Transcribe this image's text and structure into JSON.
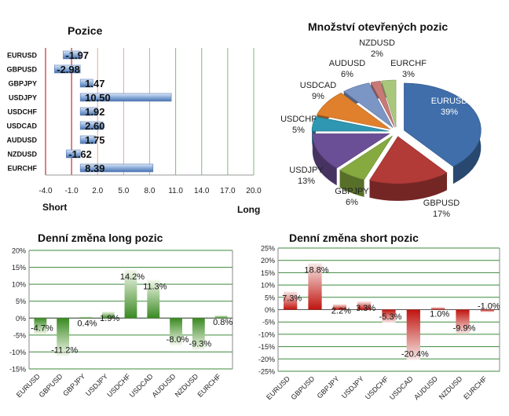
{
  "chart_data": [
    {
      "id": "pozice",
      "type": "bar",
      "orientation": "horizontal",
      "title": "Pozice",
      "categories": [
        "EURUSD",
        "GBPUSD",
        "GBPJPY",
        "USDJPY",
        "USDCHF",
        "USDCAD",
        "AUDUSD",
        "NZDUSD",
        "EURCHF"
      ],
      "values": [
        -1.97,
        -2.98,
        1.47,
        10.5,
        1.92,
        2.6,
        1.75,
        -1.62,
        8.39
      ],
      "value_labels": [
        "-1.97",
        "-2.98",
        "1.47",
        "10.50",
        "1.92",
        "2.60",
        "1.75",
        "-1.62",
        "8.39"
      ],
      "xlim": [
        -4.0,
        20.0
      ],
      "xticks": [
        "-4.0",
        "-1.0",
        "2.0",
        "5.0",
        "8.0",
        "11.0",
        "14.0",
        "17.0",
        "20.0"
      ],
      "left_label": "Short",
      "right_label": "Long",
      "colors": {
        "bar": "#4a72b0",
        "grid_red": "#c03030",
        "grid_green": "#3d9a3d"
      }
    },
    {
      "id": "mnozstvi",
      "type": "pie",
      "title": "Množství  otevřených pozic",
      "labels": [
        "EURUSD",
        "GBPUSD",
        "GBPJPY",
        "USDJPY",
        "USDCHF",
        "USDCAD",
        "AUDUSD",
        "NZDUSD",
        "EURCHF"
      ],
      "values": [
        39,
        17,
        6,
        13,
        5,
        9,
        6,
        2,
        3
      ],
      "value_labels": [
        "39%",
        "17%",
        "6%",
        "13%",
        "5%",
        "9%",
        "6%",
        "2%",
        "3%"
      ],
      "colors": [
        "#3f6eaa",
        "#b23a37",
        "#86aa3f",
        "#6b4f96",
        "#2f97b1",
        "#e0802c",
        "#7b95c4",
        "#c77a78",
        "#a9c77c"
      ]
    },
    {
      "id": "long",
      "type": "bar",
      "title": "Denní změna long pozic",
      "categories": [
        "EURUSD",
        "GBPUSD",
        "GBPJPY",
        "USDJPY",
        "USDCHF",
        "USDCAD",
        "AUDUSD",
        "NZDUSD",
        "EURCHF"
      ],
      "values": [
        -4.7,
        -11.2,
        0.4,
        1.9,
        14.2,
        11.3,
        -8.0,
        -9.3,
        0.8
      ],
      "value_labels": [
        "-4.7%",
        "-11.2%",
        "0.4%",
        "1.9%",
        "14.2%",
        "11.3%",
        "-8.0%",
        "-9.3%",
        "0.8%"
      ],
      "ylim": [
        -15,
        20
      ],
      "yticks": [
        "-15%",
        "-10%",
        "-5%",
        "0%",
        "5%",
        "10%",
        "15%",
        "20%"
      ],
      "colors": {
        "bar": "#3c8a2a",
        "grid": "#3d8a3d"
      }
    },
    {
      "id": "short",
      "type": "bar",
      "title": "Denní změna short pozic",
      "categories": [
        "EURUSD",
        "GBPUSD",
        "GBPJPY",
        "USDJPY",
        "USDCHF",
        "USDCAD",
        "AUDUSD",
        "NZDUSD",
        "EURCHF"
      ],
      "values": [
        7.3,
        18.8,
        2.2,
        3.3,
        -5.3,
        -20.4,
        1.0,
        -9.9,
        -1.0
      ],
      "value_labels": [
        "7.3%",
        "18.8%",
        "2.2%",
        "3.3%",
        "-5.3%",
        "-20.4%",
        "1.0%",
        "-9.9%",
        "-1.0%"
      ],
      "ylim": [
        -25,
        25
      ],
      "yticks": [
        "-25%",
        "-20%",
        "-15%",
        "-10%",
        "-5%",
        "0%",
        "5%",
        "10%",
        "15%",
        "20%",
        "25%"
      ],
      "colors": {
        "bar": "#c0140f",
        "grid": "#3d8a3d"
      }
    }
  ]
}
